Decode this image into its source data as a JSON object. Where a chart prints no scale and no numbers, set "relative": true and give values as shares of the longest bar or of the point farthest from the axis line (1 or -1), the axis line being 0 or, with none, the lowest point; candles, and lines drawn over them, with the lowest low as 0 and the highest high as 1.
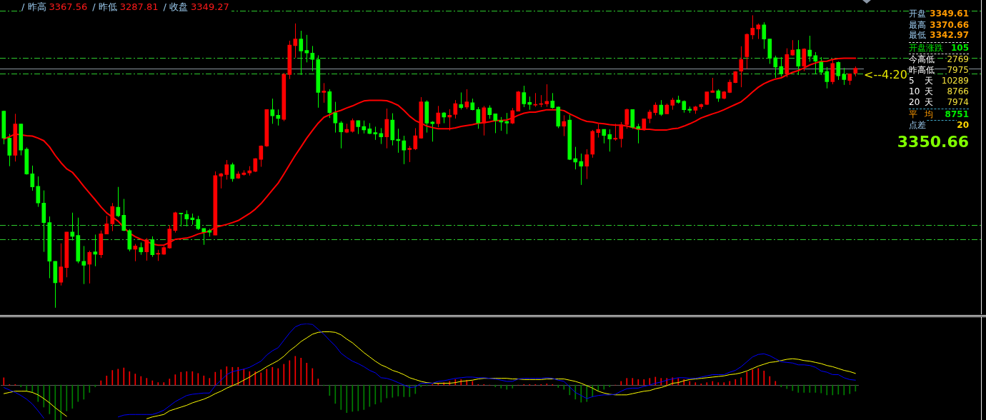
{
  "chart_data": [
    {
      "type": "candlestick",
      "relative": true,
      "categories": [
        null,
        null,
        null,
        null,
        null,
        null,
        null,
        null,
        null,
        null,
        null,
        null,
        null,
        null,
        null,
        null,
        null,
        null,
        null,
        null,
        null,
        null,
        null,
        null,
        null,
        null,
        null,
        null,
        null,
        null,
        null,
        null,
        null,
        null,
        null,
        null,
        null,
        null,
        null,
        null,
        null,
        null,
        null,
        null,
        null,
        null,
        null,
        null,
        null,
        null,
        null,
        null,
        null,
        null,
        null,
        null,
        null,
        null,
        null,
        null,
        null,
        null,
        null,
        null,
        null,
        null,
        null,
        null,
        null,
        null,
        null,
        null,
        null,
        null,
        null,
        null,
        null,
        null,
        null,
        null,
        null,
        null,
        null,
        null,
        null,
        null,
        null,
        null,
        null,
        null,
        null,
        null,
        null,
        null,
        null,
        null,
        null,
        null,
        null,
        null,
        null,
        null,
        null,
        null,
        null,
        null,
        null,
        null,
        null,
        null,
        null,
        null,
        null,
        null,
        null,
        null,
        null,
        null,
        null,
        null,
        null,
        null,
        null,
        null,
        null,
        null,
        null,
        null,
        null,
        null,
        null,
        null,
        null,
        null,
        null,
        null,
        null,
        null,
        null,
        null,
        null,
        null,
        null,
        null,
        null,
        null,
        null,
        null,
        null,
        null
      ],
      "ohlc": [
        [
          0.672,
          0.674,
          0.559,
          0.58
        ],
        [
          0.58,
          0.594,
          0.484,
          0.521
        ],
        [
          0.521,
          0.663,
          0.5,
          0.628
        ],
        [
          0.628,
          0.628,
          0.521,
          0.539
        ],
        [
          0.542,
          0.548,
          0.455,
          0.457
        ],
        [
          0.458,
          0.486,
          0.4,
          0.413
        ],
        [
          0.415,
          0.449,
          0.345,
          0.358
        ],
        [
          0.358,
          0.401,
          0.191,
          0.291
        ],
        [
          0.291,
          0.312,
          0.101,
          0.159
        ],
        [
          0.159,
          0.159,
          0,
          0.085
        ],
        [
          0.087,
          0.22,
          0.076,
          0.14
        ],
        [
          0.137,
          0.259,
          0.104,
          0.259
        ],
        [
          0.259,
          0.325,
          0.23,
          0.244
        ],
        [
          0.247,
          0.308,
          0.152,
          0.159
        ],
        [
          0.159,
          0.211,
          0.081,
          0.145
        ],
        [
          0.149,
          0.195,
          0.083,
          0.189
        ],
        [
          0.191,
          0.25,
          0.142,
          0.183
        ],
        [
          0.181,
          0.264,
          0.17,
          0.253
        ],
        [
          0.252,
          0.314,
          0.252,
          0.287
        ],
        [
          0.287,
          0.358,
          0.262,
          0.346
        ],
        [
          0.344,
          0.413,
          0.31,
          0.314
        ],
        [
          0.316,
          0.372,
          0.262,
          0.264
        ],
        [
          0.264,
          0.269,
          0.193,
          0.2
        ],
        [
          0.2,
          0.218,
          0.159,
          0.211
        ],
        [
          0.206,
          0.223,
          0.181,
          0.191
        ],
        [
          0.191,
          0.238,
          0.161,
          0.232
        ],
        [
          0.232,
          0.244,
          0.174,
          0.181
        ],
        [
          0.183,
          0.198,
          0.16,
          0.186
        ],
        [
          0.183,
          0.211,
          0.181,
          0.206
        ],
        [
          0.204,
          0.282,
          0.202,
          0.269
        ],
        [
          0.264,
          0.328,
          0.257,
          0.325
        ],
        [
          0.323,
          0.324,
          0.278,
          0.321
        ],
        [
          0.319,
          0.333,
          0.278,
          0.303
        ],
        [
          0.307,
          0.322,
          0.284,
          0.301
        ],
        [
          0.302,
          0.314,
          0.266,
          0.27
        ],
        [
          0.271,
          0.271,
          0.215,
          0.259
        ],
        [
          0.264,
          0.27,
          0.243,
          0.258
        ],
        [
          0.248,
          0.466,
          0.248,
          0.452
        ],
        [
          0.45,
          0.461,
          0.408,
          0.458
        ],
        [
          0.455,
          0.505,
          0.438,
          0.489
        ],
        [
          0.489,
          0.496,
          0.431,
          0.441
        ],
        [
          0.443,
          0.466,
          0.441,
          0.457
        ],
        [
          0.455,
          0.47,
          0.452,
          0.461
        ],
        [
          0.461,
          0.484,
          0.452,
          0.468
        ],
        [
          0.466,
          0.511,
          0.464,
          0.51
        ],
        [
          0.507,
          0.555,
          0.482,
          0.553
        ],
        [
          0.553,
          0.678,
          0.55,
          0.678
        ],
        [
          0.677,
          0.715,
          0.629,
          0.656
        ],
        [
          0.658,
          0.678,
          0.623,
          0.647
        ],
        [
          0.644,
          0.803,
          0.638,
          0.798
        ],
        [
          0.797,
          0.913,
          0.782,
          0.898
        ],
        [
          0.896,
          0.972,
          0.855,
          0.919
        ],
        [
          0.919,
          0.947,
          0.796,
          0.878
        ],
        [
          0.88,
          0.933,
          0.839,
          0.871
        ],
        [
          0.871,
          0.895,
          0.809,
          0.849
        ],
        [
          0.849,
          0.863,
          0.684,
          0.736
        ],
        [
          0.736,
          0.768,
          0.701,
          0.741
        ],
        [
          0.739,
          0.747,
          0.649,
          0.667
        ],
        [
          0.667,
          0.704,
          0.599,
          0.632
        ],
        [
          0.632,
          0.638,
          0.545,
          0.601
        ],
        [
          0.6,
          0.629,
          0.597,
          0.61
        ],
        [
          0.603,
          0.647,
          0.599,
          0.64
        ],
        [
          0.64,
          0.64,
          0.594,
          0.619
        ],
        [
          0.62,
          0.64,
          0.596,
          0.608
        ],
        [
          0.612,
          0.631,
          0.594,
          0.596
        ],
        [
          0.599,
          0.619,
          0.574,
          0.594
        ],
        [
          0.596,
          0.614,
          0.56,
          0.584
        ],
        [
          0.584,
          0.681,
          0.545,
          0.644
        ],
        [
          0.642,
          0.665,
          0.555,
          0.574
        ],
        [
          0.576,
          0.612,
          0.53,
          0.571
        ],
        [
          0.571,
          0.588,
          0.491,
          0.539
        ],
        [
          0.541,
          0.553,
          0.498,
          0.545
        ],
        [
          0.543,
          0.614,
          0.539,
          0.588
        ],
        [
          0.58,
          0.72,
          0.578,
          0.704
        ],
        [
          0.704,
          0.709,
          0.599,
          0.631
        ],
        [
          0.635,
          0.638,
          0.568,
          0.629
        ],
        [
          0.629,
          0.69,
          0.617,
          0.666
        ],
        [
          0.666,
          0.669,
          0.631,
          0.652
        ],
        [
          0.652,
          0.679,
          0.606,
          0.658
        ],
        [
          0.661,
          0.71,
          0.647,
          0.698
        ],
        [
          0.695,
          0.736,
          0.678,
          0.684
        ],
        [
          0.686,
          0.747,
          0.679,
          0.704
        ],
        [
          0.701,
          0.715,
          0.675,
          0.677
        ],
        [
          0.678,
          0.686,
          0.612,
          0.632
        ],
        [
          0.632,
          0.69,
          0.589,
          0.684
        ],
        [
          0.683,
          0.692,
          0.646,
          0.66
        ],
        [
          0.663,
          0.663,
          0.597,
          0.64
        ],
        [
          0.64,
          0.652,
          0.605,
          0.635
        ],
        [
          0.637,
          0.666,
          0.594,
          0.631
        ],
        [
          0.631,
          0.683,
          0.628,
          0.674
        ],
        [
          0.672,
          0.741,
          0.672,
          0.738
        ],
        [
          0.736,
          0.759,
          0.686,
          0.697
        ],
        [
          0.702,
          0.722,
          0.677,
          0.695
        ],
        [
          0.693,
          0.734,
          0.687,
          0.695
        ],
        [
          0.695,
          0.727,
          0.686,
          0.698
        ],
        [
          0.697,
          0.764,
          0.687,
          0.706
        ],
        [
          0.707,
          0.734,
          0.681,
          0.684
        ],
        [
          0.686,
          0.688,
          0.614,
          0.621
        ],
        [
          0.621,
          0.658,
          0.587,
          0.637
        ],
        [
          0.642,
          0.66,
          0.505,
          0.507
        ],
        [
          0.51,
          0.55,
          0.473,
          0.498
        ],
        [
          0.5,
          0.527,
          0.42,
          0.484
        ],
        [
          0.484,
          0.542,
          0.44,
          0.523
        ],
        [
          0.525,
          0.608,
          0.513,
          0.603
        ],
        [
          0.599,
          0.628,
          0.582,
          0.61
        ],
        [
          0.61,
          0.61,
          0.562,
          0.589
        ],
        [
          0.592,
          0.61,
          0.534,
          0.577
        ],
        [
          0.576,
          0.629,
          0.571,
          0.58
        ],
        [
          0.578,
          0.635,
          0.548,
          0.626
        ],
        [
          0.626,
          0.681,
          0.612,
          0.678
        ],
        [
          0.678,
          0.678,
          0.612,
          0.617
        ],
        [
          0.62,
          0.629,
          0.562,
          0.612
        ],
        [
          0.608,
          0.646,
          0.605,
          0.646
        ],
        [
          0.647,
          0.677,
          0.631,
          0.669
        ],
        [
          0.667,
          0.702,
          0.658,
          0.693
        ],
        [
          0.693,
          0.71,
          0.656,
          0.661
        ],
        [
          0.663,
          0.698,
          0.663,
          0.693
        ],
        [
          0.692,
          0.718,
          0.677,
          0.71
        ],
        [
          0.71,
          0.725,
          0.698,
          0.702
        ],
        [
          0.706,
          0.709,
          0.667,
          0.677
        ],
        [
          0.679,
          0.688,
          0.666,
          0.675
        ],
        [
          0.675,
          0.69,
          0.663,
          0.687
        ],
        [
          0.687,
          0.698,
          0.679,
          0.695
        ],
        [
          0.695,
          0.738,
          0.693,
          0.738
        ],
        [
          0.736,
          0.786,
          0.736,
          0.742
        ],
        [
          0.742,
          0.747,
          0.704,
          0.716
        ],
        [
          0.716,
          0.741,
          0.713,
          0.738
        ],
        [
          0.736,
          0.78,
          0.734,
          0.771
        ],
        [
          0.77,
          0.809,
          0.768,
          0.807
        ],
        [
          0.809,
          0.894,
          0.754,
          0.849
        ],
        [
          0.858,
          0.938,
          0.817,
          0.935
        ],
        [
          0.933,
          1,
          0.918,
          0.956
        ],
        [
          0.953,
          0.972,
          0.919,
          0.967
        ],
        [
          0.967,
          0.976,
          0.885,
          0.919
        ],
        [
          0.919,
          0.919,
          0.834,
          0.853
        ],
        [
          0.855,
          0.862,
          0.786,
          0.823
        ],
        [
          0.825,
          0.857,
          0.791,
          0.8
        ],
        [
          0.8,
          0.887,
          0.788,
          0.866
        ],
        [
          0.864,
          0.915,
          0.862,
          0.881
        ],
        [
          0.883,
          0.915,
          0.796,
          0.826
        ],
        [
          0.826,
          0.887,
          0.809,
          0.885
        ],
        [
          0.881,
          0.93,
          0.841,
          0.86
        ],
        [
          0.862,
          0.874,
          0.8,
          0.843
        ],
        [
          0.84,
          0.857,
          0.796,
          0.805
        ],
        [
          0.808,
          0.823,
          0.75,
          0.773
        ],
        [
          0.773,
          0.849,
          0.764,
          0.835
        ],
        [
          0.839,
          0.842,
          0.779,
          0.793
        ],
        [
          0.798,
          0.82,
          0.762,
          0.78
        ],
        [
          0.777,
          0.8,
          0.762,
          0.8
        ],
        [
          0.802,
          0.825,
          0.791,
          0.819
        ]
      ],
      "colors": [
        "#00ff00",
        "#00ff00",
        "#ff0000",
        "#00ff00",
        "#00ff00",
        "#00ff00",
        "#00ff00",
        "#00ff00",
        "#00ff00",
        "#00ff00",
        "#ff0000",
        "#ff0000",
        "#00ff00",
        "#00ff00",
        "#00ff00",
        "#ff0000",
        "#00ff00",
        "#ff0000",
        "#ff0000",
        "#ff0000",
        "#00ff00",
        "#00ff00",
        "#00ff00",
        "#ff0000",
        "#00ff00",
        "#ff0000",
        "#00ff00",
        "#ff0000",
        "#ff0000",
        "#ff0000",
        "#ff0000",
        "#00ff00",
        "#00ff00",
        "#00ff00",
        "#00ff00",
        "#00ff00",
        "#00ff00",
        "#ff0000",
        "#ff0000",
        "#ff0000",
        "#00ff00",
        "#ff0000",
        "#ff0000",
        "#ff0000",
        "#ff0000",
        "#ff0000",
        "#ff0000",
        "#00ff00",
        "#00ff00",
        "#ff0000",
        "#ff0000",
        "#ff0000",
        "#00ff00",
        "#00ff00",
        "#00ff00",
        "#00ff00",
        "#ff0000",
        "#00ff00",
        "#00ff00",
        "#00ff00",
        "#ff0000",
        "#ff0000",
        "#00ff00",
        "#00ff00",
        "#00ff00",
        "#00ff00",
        "#00ff00",
        "#ff0000",
        "#00ff00",
        "#00ff00",
        "#00ff00",
        "#ff0000",
        "#ff0000",
        "#ff0000",
        "#00ff00",
        "#00ff00",
        "#ff0000",
        "#00ff00",
        "#ff0000",
        "#ff0000",
        "#00ff00",
        "#ff0000",
        "#00ff00",
        "#00ff00",
        "#ff0000",
        "#00ff00",
        "#00ff00",
        "#00ff00",
        "#00ff00",
        "#ff0000",
        "#ff0000",
        "#00ff00",
        "#00ff00",
        "#ff0000",
        "#ff0000",
        "#ff0000",
        "#00ff00",
        "#00ff00",
        "#ff0000",
        "#00ff00",
        "#00ff00",
        "#00ff00",
        "#ff0000",
        "#ff0000",
        "#ff0000",
        "#00ff00",
        "#00ff00",
        "#ff0000",
        "#ff0000",
        "#ff0000",
        "#00ff00",
        "#00ff00",
        "#ff0000",
        "#ff0000",
        "#ff0000",
        "#00ff00",
        "#ff0000",
        "#ff0000",
        "#00ff00",
        "#00ff00",
        "#00ff00",
        "#ff0000",
        "#ff0000",
        "#ff0000",
        "#ff0000",
        "#00ff00",
        "#ff0000",
        "#ff0000",
        "#ff0000",
        "#ff0000",
        "#ff0000",
        "#ff0000",
        "#ff0000",
        "#00ff00",
        "#00ff00",
        "#00ff00",
        "#00ff00",
        "#ff0000",
        "#ff0000",
        "#00ff00",
        "#ff0000",
        "#00ff00",
        "#00ff00",
        "#00ff00",
        "#00ff00",
        "#ff0000",
        "#00ff00",
        "#00ff00",
        "#ff0000",
        "#ff0000"
      ],
      "series": [
        {
          "type": "line",
          "color": "#ff0000",
          "values": [
            0.577,
            0.585,
            0.594,
            0.591,
            0.588,
            0.587,
            0.58,
            0.571,
            0.55,
            0.521,
            0.496,
            0.475,
            0.463,
            0.44,
            0.415,
            0.392,
            0.369,
            0.345,
            0.324,
            0.31,
            0.296,
            0.275,
            0.255,
            0.243,
            0.234,
            0.227,
            0.218,
            0.214,
            0.214,
            0.223,
            0.234,
            0.236,
            0.238,
            0.244,
            0.252,
            0.257,
            0.262,
            0.275,
            0.28,
            0.285,
            0.291,
            0.298,
            0.31,
            0.322,
            0.337,
            0.356,
            0.379,
            0.403,
            0.426,
            0.457,
            0.489,
            0.521,
            0.55,
            0.58,
            0.606,
            0.631,
            0.651,
            0.66,
            0.669,
            0.675,
            0.683,
            0.69,
            0.699,
            0.707,
            0.709,
            0.709,
            0.709,
            0.708,
            0.701,
            0.692,
            0.675,
            0.655,
            0.64,
            0.631,
            0.621,
            0.616,
            0.612,
            0.612,
            0.612,
            0.615,
            0.62,
            0.623,
            0.626,
            0.631,
            0.633,
            0.636,
            0.64,
            0.64,
            0.642,
            0.649,
            0.658,
            0.665,
            0.669,
            0.669,
            0.673,
            0.677,
            0.677,
            0.677,
            0.674,
            0.663,
            0.654,
            0.644,
            0.637,
            0.635,
            0.631,
            0.629,
            0.626,
            0.624,
            0.624,
            0.621,
            0.617,
            0.61,
            0.61,
            0.61,
            0.608,
            0.608,
            0.608,
            0.612,
            0.614,
            0.621,
            0.629,
            0.638,
            0.649,
            0.656,
            0.663,
            0.669,
            0.677,
            0.686,
            0.695,
            0.704,
            0.72,
            0.738,
            0.754,
            0.766,
            0.775,
            0.782,
            0.786,
            0.796,
            0.805,
            0.811,
            0.82,
            0.83,
            0.837,
            0.842,
            0.843,
            0.849,
            0.852,
            0.853,
            0.853,
            0.853
          ]
        }
      ],
      "ref_lines": [
        {
          "axis": "y",
          "value": 1.015,
          "color": "#2ecc2e",
          "line_style": "dashed"
        },
        {
          "axis": "y",
          "value": 0.854,
          "color": "#2ecc2e",
          "line_style": "dashed"
        },
        {
          "axis": "y",
          "value": 0.819,
          "color": "#8c96a0",
          "line_style": "solid"
        },
        {
          "axis": "y",
          "value": 0.8,
          "color": "#2ecc2e",
          "line_style": "dashed"
        },
        {
          "axis": "y",
          "value": 0.282,
          "color": "#2ecc2e",
          "line_style": "dashed"
        },
        {
          "axis": "y",
          "value": 0.234,
          "color": "#2ecc2e",
          "line_style": "dashed"
        }
      ],
      "annotations": [
        "/ 昨高",
        "3367.56",
        "/ 昨低",
        "3287.81",
        "/ 收盘",
        "3349.27",
        "开盘",
        "3349.61",
        "最高",
        "3370.66",
        "最低",
        "3342.97",
        "开盘涨跌",
        "105",
        "今高低",
        "2769",
        "昨高低",
        "7975",
        "5 天",
        "10289",
        "10 天",
        "8766",
        "20 天",
        "7974",
        "平 均",
        "8751",
        "点差",
        "20",
        "3350.66",
        "<--4:20"
      ]
    },
    {
      "type": "line",
      "relative": true,
      "categories": [
        null,
        null,
        null,
        null,
        null,
        null,
        null,
        null,
        null,
        null,
        null,
        null,
        null,
        null,
        null,
        null,
        null,
        null,
        null,
        null,
        null,
        null,
        null,
        null,
        null,
        null,
        null,
        null,
        null,
        null,
        null,
        null,
        null,
        null,
        null,
        null,
        null,
        null,
        null,
        null,
        null,
        null,
        null,
        null,
        null,
        null,
        null,
        null,
        null,
        null,
        null,
        null,
        null,
        null,
        null,
        null,
        null,
        null,
        null,
        null,
        null,
        null,
        null,
        null,
        null,
        null,
        null,
        null,
        null,
        null,
        null,
        null,
        null,
        null,
        null,
        null,
        null,
        null,
        null,
        null,
        null,
        null,
        null,
        null,
        null,
        null,
        null,
        null,
        null,
        null,
        null,
        null,
        null,
        null,
        null,
        null,
        null,
        null,
        null,
        null,
        null,
        null,
        null,
        null,
        null,
        null,
        null,
        null,
        null,
        null,
        null,
        null,
        null,
        null,
        null,
        null,
        null,
        null,
        null,
        null,
        null,
        null,
        null,
        null,
        null,
        null,
        null,
        null,
        null,
        null,
        null,
        null,
        null,
        null,
        null,
        null,
        null,
        null,
        null,
        null,
        null,
        null,
        null,
        null,
        null,
        null,
        null,
        null,
        null,
        null
      ],
      "series": [
        {
          "type": "bar",
          "values": [
            0.12,
            0.01,
            0.01,
            -0.03,
            -0.1,
            -0.12,
            -0.27,
            -0.36,
            -0.47,
            -0.57,
            -0.57,
            -0.42,
            -0.38,
            -0.27,
            -0.23,
            -0.12,
            -0.03,
            0.07,
            0.15,
            0.24,
            0.26,
            0.28,
            0.22,
            0.18,
            0.14,
            0.11,
            0.07,
            0.04,
            0.04,
            0.1,
            0.17,
            0.21,
            0.22,
            0.22,
            0.19,
            0.15,
            0.11,
            0.21,
            0.25,
            0.3,
            0.29,
            0.29,
            0.26,
            0.22,
            0.22,
            0.2,
            0.26,
            0.29,
            0.27,
            0.34,
            0.4,
            0.47,
            0.44,
            0.36,
            0.27,
            0.1,
            -0.01,
            -0.17,
            -0.3,
            -0.4,
            -0.45,
            -0.43,
            -0.42,
            -0.4,
            -0.35,
            -0.31,
            -0.28,
            -0.21,
            -0.2,
            -0.18,
            -0.19,
            -0.19,
            -0.14,
            -0.03,
            -0.01,
            0.01,
            0.03,
            0.04,
            0.06,
            0.09,
            0.09,
            0.08,
            0.06,
            0.01,
            0.01,
            0,
            -0.03,
            -0.05,
            -0.07,
            -0.05,
            0,
            0.01,
            0.01,
            0.01,
            0.01,
            0.02,
            0.01,
            -0.04,
            -0.07,
            -0.16,
            -0.23,
            -0.28,
            -0.27,
            -0.19,
            -0.09,
            -0.07,
            -0.03,
            0,
            0.06,
            0.11,
            0.11,
            0.09,
            0.09,
            0.11,
            0.13,
            0.11,
            0.11,
            0.12,
            0.11,
            0.09,
            0.06,
            0.04,
            0.02,
            0.04,
            0.06,
            0.04,
            0.04,
            0.06,
            0.09,
            0.12,
            0.21,
            0.25,
            0.27,
            0.23,
            0.14,
            0.06,
            -0.03,
            -0.06,
            -0.09,
            -0.12,
            -0.12,
            -0.12,
            -0.12,
            -0.13,
            -0.16,
            -0.16,
            -0.15,
            -0.16,
            -0.14,
            -0.1
          ],
          "colors": [
            "#ff0000",
            "#ff0000",
            "#ff0000",
            "#008000",
            "#008000",
            "#008000",
            "#008000",
            "#008000",
            "#008000",
            "#008000",
            "#008000",
            "#008000",
            "#008000",
            "#008000",
            "#008000",
            "#008000",
            "#008000",
            "#ff0000",
            "#ff0000",
            "#ff0000",
            "#ff0000",
            "#ff0000",
            "#ff0000",
            "#ff0000",
            "#ff0000",
            "#ff0000",
            "#ff0000",
            "#ff0000",
            "#ff0000",
            "#ff0000",
            "#ff0000",
            "#ff0000",
            "#ff0000",
            "#ff0000",
            "#ff0000",
            "#ff0000",
            "#ff0000",
            "#ff0000",
            "#ff0000",
            "#ff0000",
            "#ff0000",
            "#ff0000",
            "#ff0000",
            "#ff0000",
            "#ff0000",
            "#ff0000",
            "#ff0000",
            "#ff0000",
            "#ff0000",
            "#ff0000",
            "#ff0000",
            "#ff0000",
            "#ff0000",
            "#ff0000",
            "#ff0000",
            "#ff0000",
            "#008000",
            "#008000",
            "#008000",
            "#008000",
            "#008000",
            "#008000",
            "#008000",
            "#008000",
            "#008000",
            "#008000",
            "#008000",
            "#008000",
            "#008000",
            "#008000",
            "#008000",
            "#008000",
            "#008000",
            "#008000",
            "#008000",
            "#ff0000",
            "#ff0000",
            "#ff0000",
            "#ff0000",
            "#ff0000",
            "#ff0000",
            "#ff0000",
            "#ff0000",
            "#ff0000",
            "#ff0000",
            "#ff0000",
            "#008000",
            "#008000",
            "#008000",
            "#008000",
            "#ff0000",
            "#ff0000",
            "#ff0000",
            "#ff0000",
            "#ff0000",
            "#ff0000",
            "#ff0000",
            "#008000",
            "#008000",
            "#008000",
            "#008000",
            "#008000",
            "#008000",
            "#008000",
            "#008000",
            "#008000",
            "#008000",
            "#ff0000",
            "#ff0000",
            "#ff0000",
            "#ff0000",
            "#ff0000",
            "#ff0000",
            "#ff0000",
            "#ff0000",
            "#ff0000",
            "#ff0000",
            "#ff0000",
            "#ff0000",
            "#ff0000",
            "#ff0000",
            "#ff0000",
            "#ff0000",
            "#ff0000",
            "#ff0000",
            "#ff0000",
            "#ff0000",
            "#ff0000",
            "#ff0000",
            "#ff0000",
            "#ff0000",
            "#ff0000",
            "#ff0000",
            "#ff0000",
            "#ff0000",
            "#ff0000",
            "#008000",
            "#008000",
            "#008000",
            "#008000",
            "#008000",
            "#008000",
            "#008000",
            "#008000",
            "#008000",
            "#008000",
            "#008000",
            "#008000",
            "#008000",
            "#008000"
          ]
        },
        {
          "type": "line",
          "color": "#0000ff",
          "values": [
            -0.04,
            -0.08,
            -0.12,
            -0.17,
            -0.23,
            -0.31,
            -0.42,
            -0.54,
            null,
            null,
            null,
            null,
            null,
            null,
            null,
            null,
            null,
            null,
            null,
            null,
            -0.52,
            -0.49,
            -0.48,
            -0.48,
            -0.48,
            -0.48,
            -0.48,
            -0.45,
            -0.41,
            -0.34,
            -0.27,
            -0.22,
            -0.17,
            -0.15,
            -0.14,
            -0.13,
            -0.13,
            -0.01,
            0.08,
            0.17,
            0.22,
            0.24,
            0.26,
            0.29,
            0.34,
            0.39,
            0.49,
            0.56,
            0.61,
            0.73,
            0.85,
            0.95,
            0.99,
            1,
            0.99,
            0.91,
            0.83,
            0.73,
            0.64,
            0.52,
            0.45,
            0.39,
            0.35,
            0.3,
            0.24,
            0.2,
            0.12,
            0.11,
            0.08,
            0.04,
            0,
            -0.04,
            -0.03,
            0.03,
            0.03,
            0.03,
            0.06,
            0.07,
            0.09,
            0.11,
            0.12,
            0.13,
            0.13,
            0.12,
            0.12,
            0.11,
            0.1,
            0.08,
            0.06,
            0.06,
            0.1,
            0.11,
            0.11,
            0.11,
            0.11,
            0.12,
            0.11,
            0.08,
            0.06,
            -0.03,
            -0.12,
            -0.17,
            -0.22,
            -0.19,
            -0.17,
            -0.16,
            -0.16,
            -0.15,
            -0.1,
            -0.06,
            -0.05,
            -0.05,
            -0.02,
            0,
            0.03,
            0.05,
            0.08,
            0.1,
            0.12,
            0.12,
            0.11,
            0.11,
            0.13,
            0.15,
            0.17,
            0.17,
            0.17,
            0.21,
            0.24,
            0.3,
            0.38,
            0.46,
            0.5,
            0.51,
            0.48,
            0.43,
            0.38,
            0.37,
            0.36,
            0.33,
            0.33,
            0.32,
            0.29,
            0.23,
            0.21,
            0.17,
            0.17,
            0.12,
            0.09,
            0.08
          ]
        },
        {
          "type": "line",
          "color": "#ffff00",
          "values": [
            -0.14,
            -0.12,
            -0.1,
            -0.1,
            -0.1,
            -0.12,
            -0.16,
            -0.22,
            -0.29,
            -0.37,
            -0.44,
            -0.51,
            null,
            null,
            null,
            null,
            null,
            null,
            null,
            null,
            null,
            null,
            null,
            null,
            null,
            -0.55,
            -0.52,
            -0.5,
            -0.48,
            -0.42,
            -0.39,
            -0.36,
            -0.33,
            -0.29,
            -0.26,
            -0.23,
            -0.19,
            -0.14,
            -0.1,
            -0.05,
            -0.01,
            0.03,
            0.08,
            0.13,
            0.19,
            0.24,
            0.3,
            0.35,
            0.4,
            0.47,
            0.56,
            0.63,
            0.71,
            0.77,
            0.83,
            0.86,
            0.87,
            0.87,
            0.86,
            0.82,
            0.75,
            0.69,
            0.61,
            0.53,
            0.46,
            0.39,
            0.33,
            0.29,
            0.24,
            0.21,
            0.17,
            0.12,
            0.09,
            0.06,
            0.04,
            0.03,
            0.03,
            0.03,
            0.03,
            0.04,
            0.06,
            0.07,
            0.08,
            0.1,
            0.11,
            0.11,
            0.11,
            0.11,
            0.11,
            0.1,
            0.1,
            0.09,
            0.09,
            0.09,
            0.09,
            0.1,
            0.1,
            0.1,
            0.1,
            0.08,
            0.06,
            0.03,
            -0.01,
            -0.05,
            -0.1,
            -0.13,
            -0.15,
            -0.16,
            -0.16,
            -0.16,
            -0.14,
            -0.12,
            -0.1,
            -0.09,
            -0.06,
            -0.04,
            -0.01,
            0.03,
            0.04,
            0.07,
            0.09,
            0.1,
            0.11,
            0.12,
            0.13,
            0.14,
            0.15,
            0.17,
            0.18,
            0.2,
            0.23,
            0.27,
            0.31,
            0.34,
            0.37,
            0.38,
            0.4,
            0.42,
            0.43,
            0.42,
            0.4,
            0.39,
            0.37,
            0.35,
            0.32,
            0.3,
            0.27,
            0.24,
            0.22,
            0.19
          ]
        }
      ]
    }
  ]
}
